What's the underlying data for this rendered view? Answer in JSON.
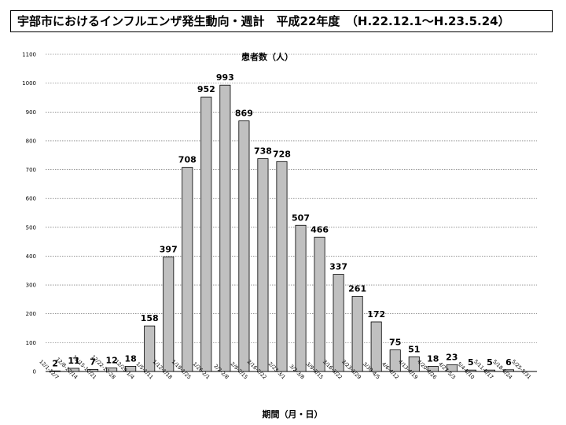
{
  "title": "宇部市におけるインフルエンザ発生動向・週計　平成22年度　（H.22.12.1〜H.23.5.24）",
  "chart_data": {
    "type": "bar",
    "title": "宇部市におけるインフルエンザ発生動向・週計　平成22年度　（H.22.12.1〜H.23.5.24）",
    "ylabel": "患者数（人）",
    "xlabel": "期間（月・日）",
    "ylim": [
      0,
      1100
    ],
    "yticks": [
      0,
      100,
      200,
      300,
      400,
      500,
      600,
      700,
      800,
      900,
      1000,
      1100
    ],
    "grid": true,
    "bar_color": "#c0c0c0",
    "categories": [
      "12/1-12/7",
      "12/8-12/14",
      "12/15-12/21",
      "12/22-12-28",
      "12/29-1/4",
      "1/5-1/11",
      "1/12-1/18",
      "1/19-1/25",
      "1/26-2/1",
      "2/2-2/8",
      "2/9-2/15",
      "2/16-2/22",
      "2/23-3/1",
      "3/2-3/8",
      "3/9-3/15",
      "3/16-3/22",
      "3/23-3/29",
      "3/30-4/5",
      "4/6-4/12",
      "4/13-4/19",
      "4/20-4/26",
      "4/27-5/3",
      "5/4-5/10",
      "5/11-5/17",
      "5/18-5/24",
      "5/25-5/31"
    ],
    "values": [
      2,
      11,
      7,
      12,
      18,
      158,
      397,
      708,
      952,
      993,
      869,
      738,
      728,
      507,
      466,
      337,
      261,
      172,
      75,
      51,
      18,
      23,
      5,
      5,
      6,
      null
    ]
  }
}
